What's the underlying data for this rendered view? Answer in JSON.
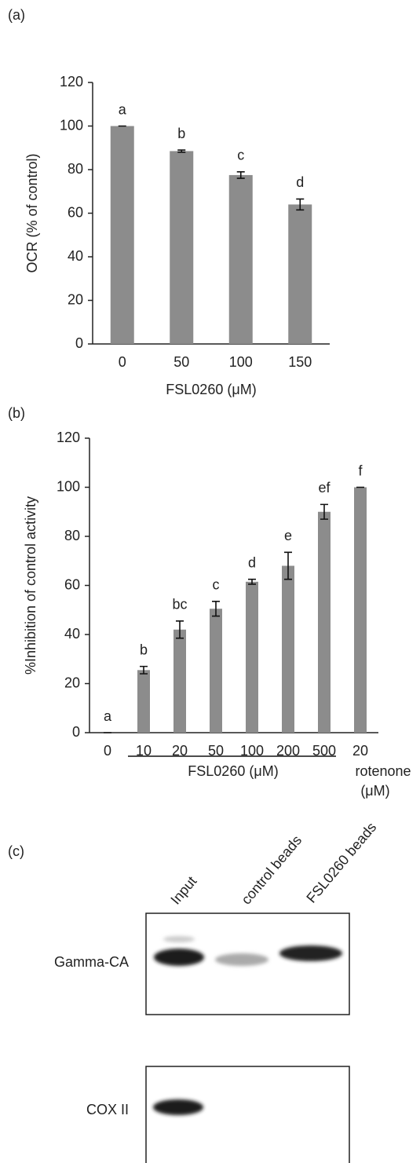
{
  "chart_data": [
    {
      "type": "bar",
      "panel_label": "(a)",
      "ylabel": "OCR (% of control)",
      "xlabel": "FSL0260 (μM)",
      "categories": [
        "0",
        "50",
        "100",
        "150"
      ],
      "values": [
        100,
        88.5,
        77.5,
        64
      ],
      "errors": [
        0,
        0.5,
        1.5,
        2.5
      ],
      "annotations": [
        "a",
        "b",
        "c",
        "d"
      ],
      "color": "#8c8c8c",
      "ylim": [
        0,
        120
      ],
      "yticks": [
        0,
        20,
        40,
        60,
        80,
        100,
        120
      ]
    },
    {
      "type": "bar",
      "panel_label": "(b)",
      "ylabel": "%Inhibition of  control activity",
      "xlabel": "FSL0260 (μM)",
      "group_label_lines": [
        "rotenone",
        "(μM)"
      ],
      "categories": [
        "0",
        "10",
        "20",
        "50",
        "100",
        "200",
        "500",
        "20"
      ],
      "values": [
        0,
        25.5,
        42,
        50.5,
        61.5,
        68,
        90,
        100
      ],
      "errors": [
        0,
        1.5,
        3.5,
        3,
        1,
        5.5,
        3,
        0
      ],
      "annotations": [
        "a",
        "b",
        "bc",
        "c",
        "d",
        "e",
        "ef",
        "f"
      ],
      "color": "#8c8c8c",
      "ylim": [
        0,
        120
      ],
      "yticks": [
        0,
        20,
        40,
        60,
        80,
        100,
        120
      ]
    }
  ],
  "blot": {
    "panel_label": "(c)",
    "lanes": [
      "Input",
      "control beads",
      "FSL0260 beads"
    ],
    "rows": [
      "Gamma-CA",
      "COX II"
    ]
  }
}
